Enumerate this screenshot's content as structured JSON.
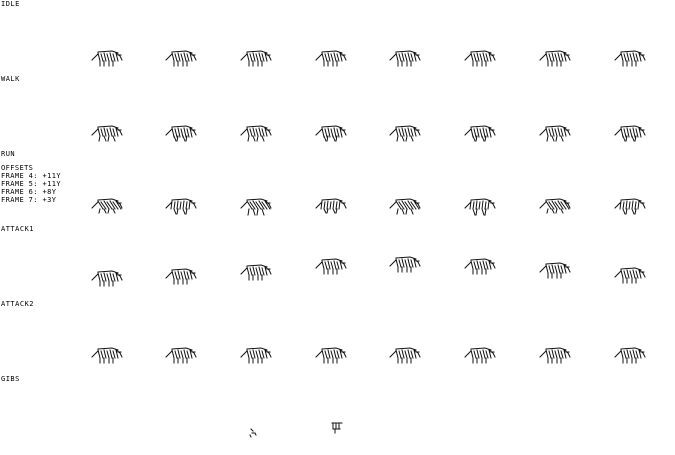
{
  "sheet": {
    "background": "#ffffff",
    "ink": "#111111",
    "rows": [
      {
        "id": "idle",
        "label": "IDLE",
        "frame_count": 8,
        "pose": "stand"
      },
      {
        "id": "walk",
        "label": "WALK",
        "frame_count": 8,
        "pose": "walk"
      },
      {
        "id": "run",
        "label": "RUN",
        "frame_count": 8,
        "pose": "run"
      },
      {
        "id": "attack1",
        "label": "ATTACK1",
        "frame_count": 8,
        "pose": "attack"
      },
      {
        "id": "attack2",
        "label": "ATTACK2",
        "frame_count": 8,
        "pose": "attack2"
      },
      {
        "id": "gibs",
        "label": "GIBS",
        "frame_count": 2,
        "pose": "gibs"
      }
    ],
    "offsets": {
      "title": "OFFSETS",
      "lines": [
        "FRAME 4: +11y",
        "FRAME 5: +11y",
        "FRAME 6: +8y",
        "FRAME 7: +3y"
      ]
    }
  }
}
